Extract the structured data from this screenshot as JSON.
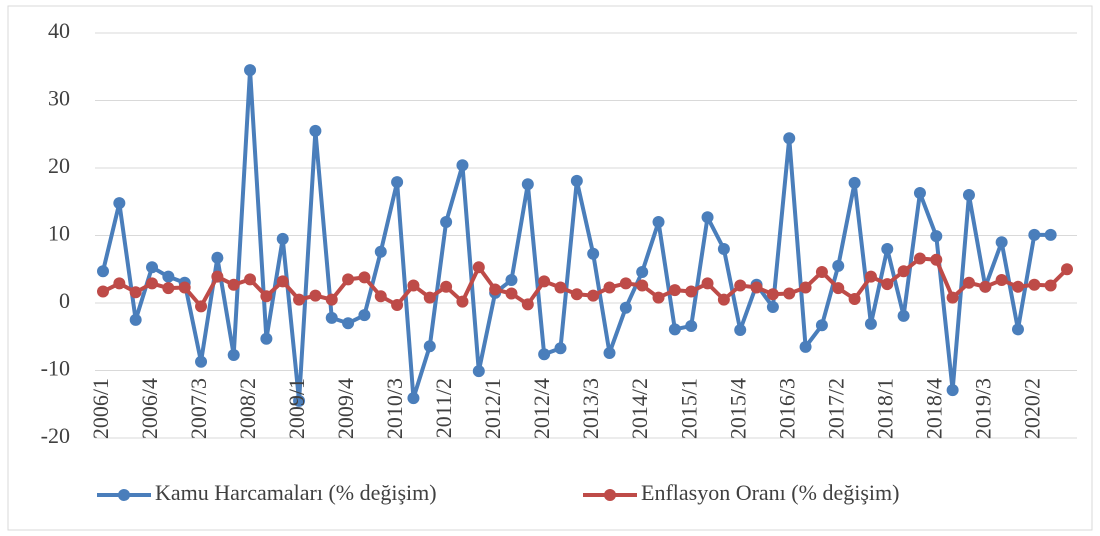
{
  "chart_data": {
    "type": "line",
    "categories": [
      "2006/1",
      null,
      null,
      "2006/4",
      null,
      null,
      "2007/3",
      null,
      null,
      "2008/2",
      null,
      null,
      "2009/1",
      null,
      null,
      "2009/4",
      null,
      null,
      "2010/3",
      null,
      null,
      "2011/2",
      null,
      null,
      "2012/1",
      null,
      null,
      "2012/4",
      null,
      null,
      "2013/3",
      null,
      null,
      "2014/2",
      null,
      null,
      "2015/1",
      null,
      null,
      "2015/4",
      null,
      null,
      "2016/3",
      null,
      null,
      "2017/2",
      null,
      null,
      "2018/1",
      null,
      null,
      "2018/4",
      null,
      null,
      "2019/3",
      null,
      null,
      "2020/2",
      null,
      null
    ],
    "series": [
      {
        "name": "Kamu Harcamaları (% değişim)",
        "color": "#4a7ebb",
        "values": [
          4.7,
          14.8,
          -2.5,
          5.3,
          3.9,
          3.0,
          -8.7,
          6.7,
          -7.7,
          34.5,
          -5.3,
          9.5,
          -14.5,
          25.5,
          -2.2,
          -3.0,
          -1.8,
          7.6,
          17.9,
          -14.1,
          -6.4,
          12.0,
          20.4,
          -10.1,
          1.5,
          3.4,
          17.6,
          -7.6,
          -6.7,
          18.1,
          7.3,
          -7.4,
          -0.7,
          4.6,
          12.0,
          -3.9,
          -3.4,
          12.7,
          8.0,
          -4.0,
          2.7,
          -0.6,
          24.4,
          -6.5,
          -3.3,
          5.5,
          17.8,
          -3.1,
          8.0,
          -1.9,
          16.3,
          9.9,
          -12.9,
          16.0,
          2.4,
          9.0,
          -3.9,
          10.1,
          10.1,
          null
        ]
      },
      {
        "name": "Enflasyon Oranı (% değişim)",
        "color": "#be4b48",
        "values": [
          1.7,
          2.9,
          1.6,
          2.9,
          2.2,
          2.3,
          -0.5,
          3.9,
          2.7,
          3.5,
          1.0,
          3.2,
          0.5,
          1.1,
          0.5,
          3.5,
          3.8,
          1.0,
          -0.3,
          2.6,
          0.8,
          2.4,
          0.2,
          5.3,
          2.0,
          1.4,
          -0.2,
          3.2,
          2.3,
          1.3,
          1.1,
          2.3,
          2.9,
          2.6,
          0.8,
          1.9,
          1.7,
          2.9,
          0.5,
          2.6,
          2.3,
          1.3,
          1.4,
          2.3,
          4.6,
          2.2,
          0.6,
          3.9,
          2.8,
          4.7,
          6.6,
          6.4,
          0.8,
          3.0,
          2.4,
          3.4,
          2.4,
          2.7,
          2.6,
          5.0
        ]
      }
    ],
    "ylim": [
      -20,
      40
    ],
    "yticks": [
      -20,
      -10,
      0,
      10,
      20,
      30,
      40
    ],
    "grid": true,
    "legend": "bottom"
  }
}
